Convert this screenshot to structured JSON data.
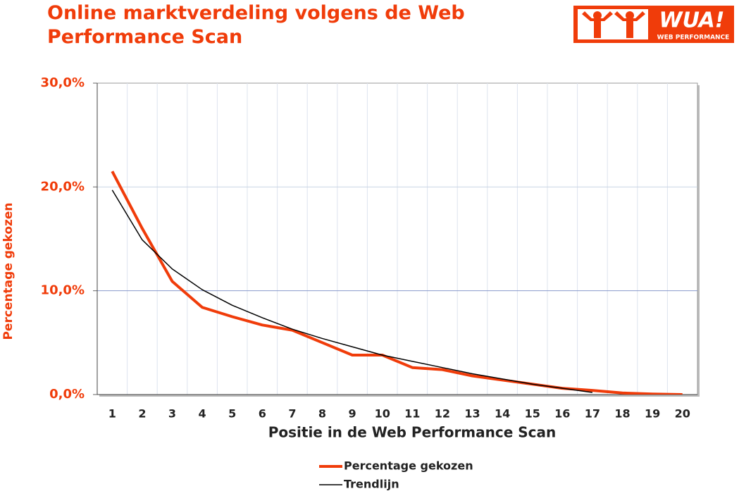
{
  "title": "Online marktverdeling volgens de Web Performance Scan",
  "logo": {
    "text": "WUA!",
    "subtext": "WEB PERFORMANCE"
  },
  "chart_data": {
    "type": "line",
    "x_label": "Positie in de Web Performance Scan",
    "y_label": "Percentage gekozen",
    "categories": [
      "1",
      "2",
      "3",
      "4",
      "5",
      "6",
      "7",
      "8",
      "9",
      "10",
      "11",
      "12",
      "13",
      "14",
      "15",
      "16",
      "17",
      "18",
      "19",
      "20"
    ],
    "series": [
      {
        "name": "Percentage gekozen",
        "color": "#f03c0a",
        "values": [
          21.5,
          16.0,
          10.9,
          8.4,
          7.5,
          6.7,
          6.2,
          5.0,
          3.8,
          3.8,
          2.6,
          2.4,
          1.8,
          1.4,
          1.0,
          0.6,
          0.4,
          0.15,
          0.05,
          0.0
        ]
      },
      {
        "name": "Trendlijn",
        "color": "#000000",
        "values": [
          19.7,
          14.9,
          12.1,
          10.1,
          8.6,
          7.4,
          6.3,
          5.4,
          4.6,
          3.8,
          3.2,
          2.6,
          2.0,
          1.5,
          1.0,
          0.6,
          0.2,
          null,
          null,
          null
        ]
      }
    ],
    "ylim": [
      0,
      30
    ],
    "yticks": [
      {
        "value": 0,
        "label": "0,0%"
      },
      {
        "value": 10,
        "label": "10,0%"
      },
      {
        "value": 20,
        "label": "20,0%"
      },
      {
        "value": 30,
        "label": "30,0%"
      }
    ],
    "grid": true
  }
}
